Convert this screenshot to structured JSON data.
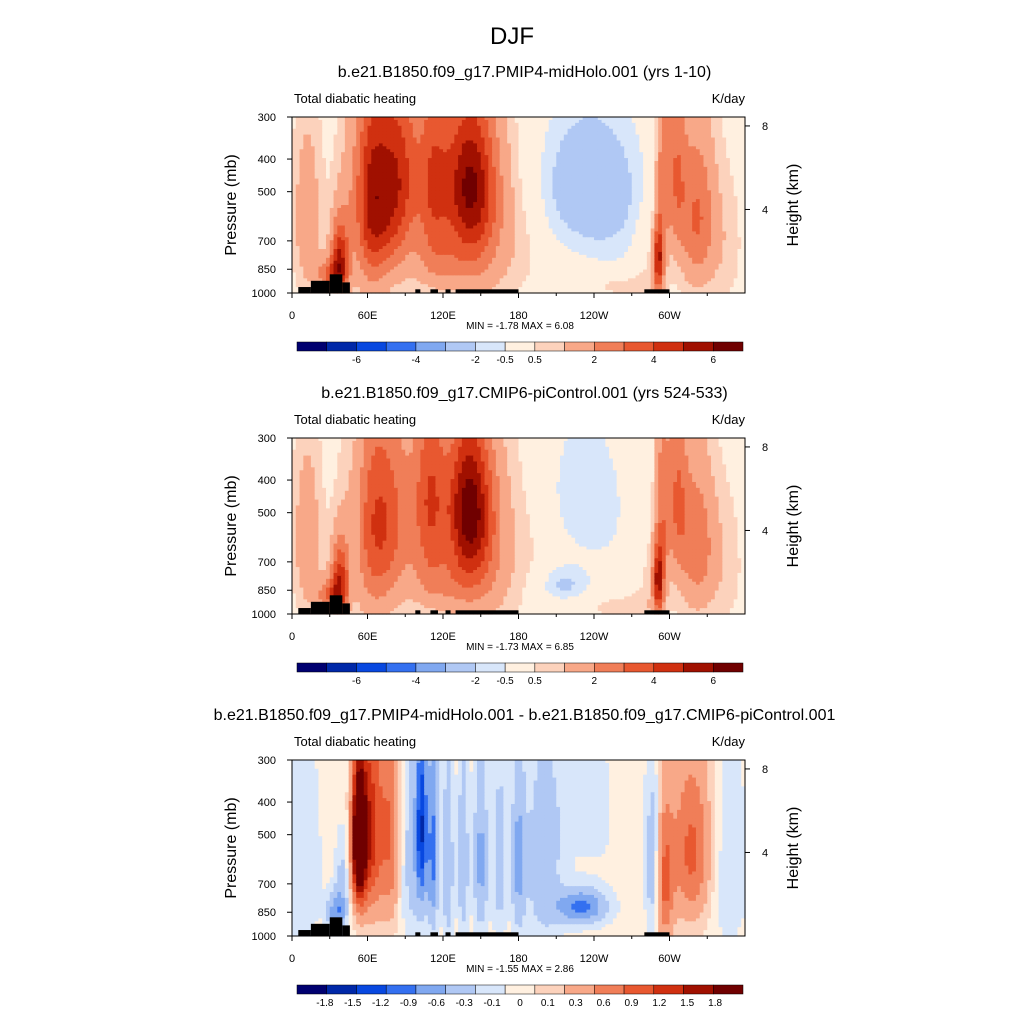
{
  "figure": {
    "main_title": "DJF"
  },
  "colors": {
    "abs_palette": [
      "#000070",
      "#0028a8",
      "#0848e0",
      "#3470f0",
      "#80a8f0",
      "#b0c8f4",
      "#d8e6fa",
      "#fff0e0",
      "#fcd2bc",
      "#f8a888",
      "#f07e58",
      "#e85830",
      "#d03010",
      "#a01000",
      "#700000"
    ],
    "diff_palette": [
      "#000070",
      "#0028a8",
      "#0848e0",
      "#3470f0",
      "#80a8f0",
      "#b0c8f4",
      "#d8e6fa",
      "#fff0e0",
      "#fcd2bc",
      "#f8a888",
      "#f07e58",
      "#e85830",
      "#d03010",
      "#a01000",
      "#700000"
    ],
    "land": "#000000"
  },
  "chart_data": [
    {
      "type": "heatmap",
      "title": "b.e21.B1850.f09_g17.PMIP4-midHolo.001 (yrs 1-10)",
      "left_label": "Total diabatic heating",
      "right_label": "K/day",
      "ylabel": "Pressure (mb)",
      "y2label": "Height (km)",
      "xticks": [
        "0",
        "60E",
        "120E",
        "180",
        "120W",
        "60W"
      ],
      "yticks": [
        "300",
        "400",
        "500",
        "700",
        "850",
        "1000"
      ],
      "y2ticks": [
        "8",
        "4"
      ],
      "xlim": [
        0,
        360
      ],
      "ylim": [
        1000,
        300
      ],
      "min_max": "MIN =  -1.78  MAX =   6.08",
      "colorbar_labels": [
        "-6",
        "-4",
        "-2",
        "-0.5",
        "0.5",
        "2",
        "4",
        "6"
      ],
      "features": [
        {
          "lon": 12,
          "p": 600,
          "v": 1.5,
          "sx": 8,
          "sy": 250
        },
        {
          "lon": 38,
          "p": 800,
          "v": 4.5,
          "sx": 5,
          "sy": 150
        },
        {
          "lon": 30,
          "p": 880,
          "v": 2.5,
          "sx": 8,
          "sy": 70
        },
        {
          "lon": 52,
          "p": 500,
          "v": -0.4,
          "sx": 5,
          "sy": 300
        },
        {
          "lon": 70,
          "p": 520,
          "v": 4.3,
          "sx": 16,
          "sy": 240
        },
        {
          "lon": 62,
          "p": 560,
          "v": 1.6,
          "sx": 10,
          "sy": 330
        },
        {
          "lon": 88,
          "p": 430,
          "v": 2.2,
          "sx": 10,
          "sy": 200
        },
        {
          "lon": 112,
          "p": 470,
          "v": 3.2,
          "sx": 9,
          "sy": 230
        },
        {
          "lon": 140,
          "p": 470,
          "v": 4.6,
          "sx": 14,
          "sy": 180
        },
        {
          "lon": 150,
          "p": 600,
          "v": 2.0,
          "sx": 18,
          "sy": 280
        },
        {
          "lon": 122,
          "p": 820,
          "v": 1.2,
          "sx": 18,
          "sy": 110
        },
        {
          "lon": 185,
          "p": 650,
          "v": 0.4,
          "sx": 12,
          "sy": 250
        },
        {
          "lon": 235,
          "p": 470,
          "v": -1.75,
          "sx": 30,
          "sy": 170
        },
        {
          "lon": 260,
          "p": 700,
          "v": -0.5,
          "sx": 30,
          "sy": 240
        },
        {
          "lon": 262,
          "p": 950,
          "v": 0.8,
          "sx": 22,
          "sy": 60
        },
        {
          "lon": 282,
          "p": 760,
          "v": 0.6,
          "sx": 8,
          "sy": 200
        },
        {
          "lon": 291,
          "p": 800,
          "v": 4.3,
          "sx": 3,
          "sy": 130
        },
        {
          "lon": 294,
          "p": 500,
          "v": 2.2,
          "sx": 4,
          "sy": 250
        },
        {
          "lon": 305,
          "p": 440,
          "v": 2.6,
          "sx": 6,
          "sy": 200
        },
        {
          "lon": 322,
          "p": 600,
          "v": 3.0,
          "sx": 10,
          "sy": 230
        },
        {
          "lon": 345,
          "p": 720,
          "v": 0.6,
          "sx": 10,
          "sy": 250
        }
      ]
    },
    {
      "type": "heatmap",
      "title": "b.e21.B1850.f09_g17.CMIP6-piControl.001 (yrs 524-533)",
      "left_label": "Total diabatic heating",
      "right_label": "K/day",
      "ylabel": "Pressure (mb)",
      "y2label": "Height (km)",
      "xticks": [
        "0",
        "60E",
        "120E",
        "180",
        "120W",
        "60W"
      ],
      "yticks": [
        "300",
        "400",
        "500",
        "700",
        "850",
        "1000"
      ],
      "y2ticks": [
        "8",
        "4"
      ],
      "xlim": [
        0,
        360
      ],
      "ylim": [
        1000,
        300
      ],
      "min_max": "MIN =  -1.73  MAX =   6.85",
      "colorbar_labels": [
        "-6",
        "-4",
        "-2",
        "-0.5",
        "0.5",
        "2",
        "4",
        "6"
      ],
      "features": [
        {
          "lon": 12,
          "p": 600,
          "v": 1.5,
          "sx": 8,
          "sy": 250
        },
        {
          "lon": 38,
          "p": 800,
          "v": 4.2,
          "sx": 5,
          "sy": 150
        },
        {
          "lon": 30,
          "p": 880,
          "v": 2.4,
          "sx": 8,
          "sy": 70
        },
        {
          "lon": 52,
          "p": 500,
          "v": -0.4,
          "sx": 5,
          "sy": 300
        },
        {
          "lon": 75,
          "p": 520,
          "v": 2.8,
          "sx": 18,
          "sy": 240
        },
        {
          "lon": 65,
          "p": 620,
          "v": 1.6,
          "sx": 12,
          "sy": 330
        },
        {
          "lon": 110,
          "p": 450,
          "v": 3.3,
          "sx": 9,
          "sy": 230
        },
        {
          "lon": 140,
          "p": 480,
          "v": 5.0,
          "sx": 12,
          "sy": 180
        },
        {
          "lon": 150,
          "p": 620,
          "v": 2.2,
          "sx": 18,
          "sy": 280
        },
        {
          "lon": 122,
          "p": 820,
          "v": 1.2,
          "sx": 18,
          "sy": 110
        },
        {
          "lon": 190,
          "p": 650,
          "v": 0.3,
          "sx": 12,
          "sy": 250
        },
        {
          "lon": 230,
          "p": 420,
          "v": -0.9,
          "sx": 22,
          "sy": 160
        },
        {
          "lon": 215,
          "p": 820,
          "v": -1.2,
          "sx": 14,
          "sy": 70
        },
        {
          "lon": 255,
          "p": 640,
          "v": -0.4,
          "sx": 26,
          "sy": 250
        },
        {
          "lon": 262,
          "p": 950,
          "v": 0.8,
          "sx": 22,
          "sy": 60
        },
        {
          "lon": 282,
          "p": 760,
          "v": 0.6,
          "sx": 8,
          "sy": 200
        },
        {
          "lon": 291,
          "p": 800,
          "v": 4.6,
          "sx": 3,
          "sy": 130
        },
        {
          "lon": 294,
          "p": 500,
          "v": 2.3,
          "sx": 4,
          "sy": 250
        },
        {
          "lon": 306,
          "p": 450,
          "v": 2.6,
          "sx": 6,
          "sy": 200
        },
        {
          "lon": 322,
          "p": 620,
          "v": 2.6,
          "sx": 10,
          "sy": 230
        },
        {
          "lon": 345,
          "p": 720,
          "v": 0.6,
          "sx": 10,
          "sy": 250
        }
      ]
    },
    {
      "type": "heatmap",
      "title": "b.e21.B1850.f09_g17.PMIP4-midHolo.001 - b.e21.B1850.f09_g17.CMIP6-piControl.001",
      "left_label": "Total diabatic heating",
      "right_label": "K/day",
      "ylabel": "Pressure (mb)",
      "y2label": "Height (km)",
      "xticks": [
        "0",
        "60E",
        "120E",
        "180",
        "120W",
        "60W"
      ],
      "yticks": [
        "300",
        "400",
        "500",
        "700",
        "850",
        "1000"
      ],
      "y2ticks": [
        "8",
        "4"
      ],
      "xlim": [
        0,
        360
      ],
      "ylim": [
        1000,
        300
      ],
      "min_max": "MIN =  -1.55  MAX =   2.86",
      "colorbar_labels": [
        "-1.8",
        "-1.5",
        "-1.2",
        "-0.9",
        "-0.6",
        "-0.3",
        "-0.1",
        "0",
        "0.1",
        "0.3",
        "0.6",
        "0.9",
        "1.2",
        "1.5",
        "1.8"
      ],
      "features": [
        {
          "lon": 8,
          "p": 600,
          "v": -0.3,
          "sx": 10,
          "sy": 300
        },
        {
          "lon": 35,
          "p": 850,
          "v": -0.8,
          "sx": 5,
          "sy": 80
        },
        {
          "lon": 40,
          "p": 700,
          "v": -0.4,
          "sx": 4,
          "sy": 150
        },
        {
          "lon": 53,
          "p": 520,
          "v": 2.7,
          "sx": 4,
          "sy": 180
        },
        {
          "lon": 62,
          "p": 480,
          "v": 1.3,
          "sx": 6,
          "sy": 250
        },
        {
          "lon": 78,
          "p": 500,
          "v": 1.0,
          "sx": 7,
          "sy": 280
        },
        {
          "lon": 95,
          "p": 560,
          "v": -0.5,
          "sx": 10,
          "sy": 300
        },
        {
          "lon": 103,
          "p": 470,
          "v": -1.2,
          "sx": 3,
          "sy": 200
        },
        {
          "lon": 112,
          "p": 560,
          "v": -0.9,
          "sx": 3,
          "sy": 250
        },
        {
          "lon": 124,
          "p": 620,
          "v": -0.6,
          "sx": 3,
          "sy": 280
        },
        {
          "lon": 136,
          "p": 600,
          "v": -0.6,
          "sx": 3,
          "sy": 260
        },
        {
          "lon": 150,
          "p": 600,
          "v": -0.7,
          "sx": 4,
          "sy": 250
        },
        {
          "lon": 165,
          "p": 600,
          "v": -0.5,
          "sx": 4,
          "sy": 250
        },
        {
          "lon": 180,
          "p": 600,
          "v": -0.7,
          "sx": 4,
          "sy": 240
        },
        {
          "lon": 200,
          "p": 600,
          "v": -0.5,
          "sx": 10,
          "sy": 300
        },
        {
          "lon": 230,
          "p": 820,
          "v": -1.0,
          "sx": 14,
          "sy": 70
        },
        {
          "lon": 240,
          "p": 420,
          "v": -0.2,
          "sx": 22,
          "sy": 140
        },
        {
          "lon": 258,
          "p": 420,
          "v": 0.1,
          "sx": 10,
          "sy": 80
        },
        {
          "lon": 287,
          "p": 620,
          "v": -0.6,
          "sx": 4,
          "sy": 250
        },
        {
          "lon": 296,
          "p": 700,
          "v": 0.9,
          "sx": 5,
          "sy": 250
        },
        {
          "lon": 318,
          "p": 560,
          "v": 1.0,
          "sx": 12,
          "sy": 230
        },
        {
          "lon": 345,
          "p": 620,
          "v": -0.3,
          "sx": 12,
          "sy": 280
        }
      ]
    }
  ]
}
